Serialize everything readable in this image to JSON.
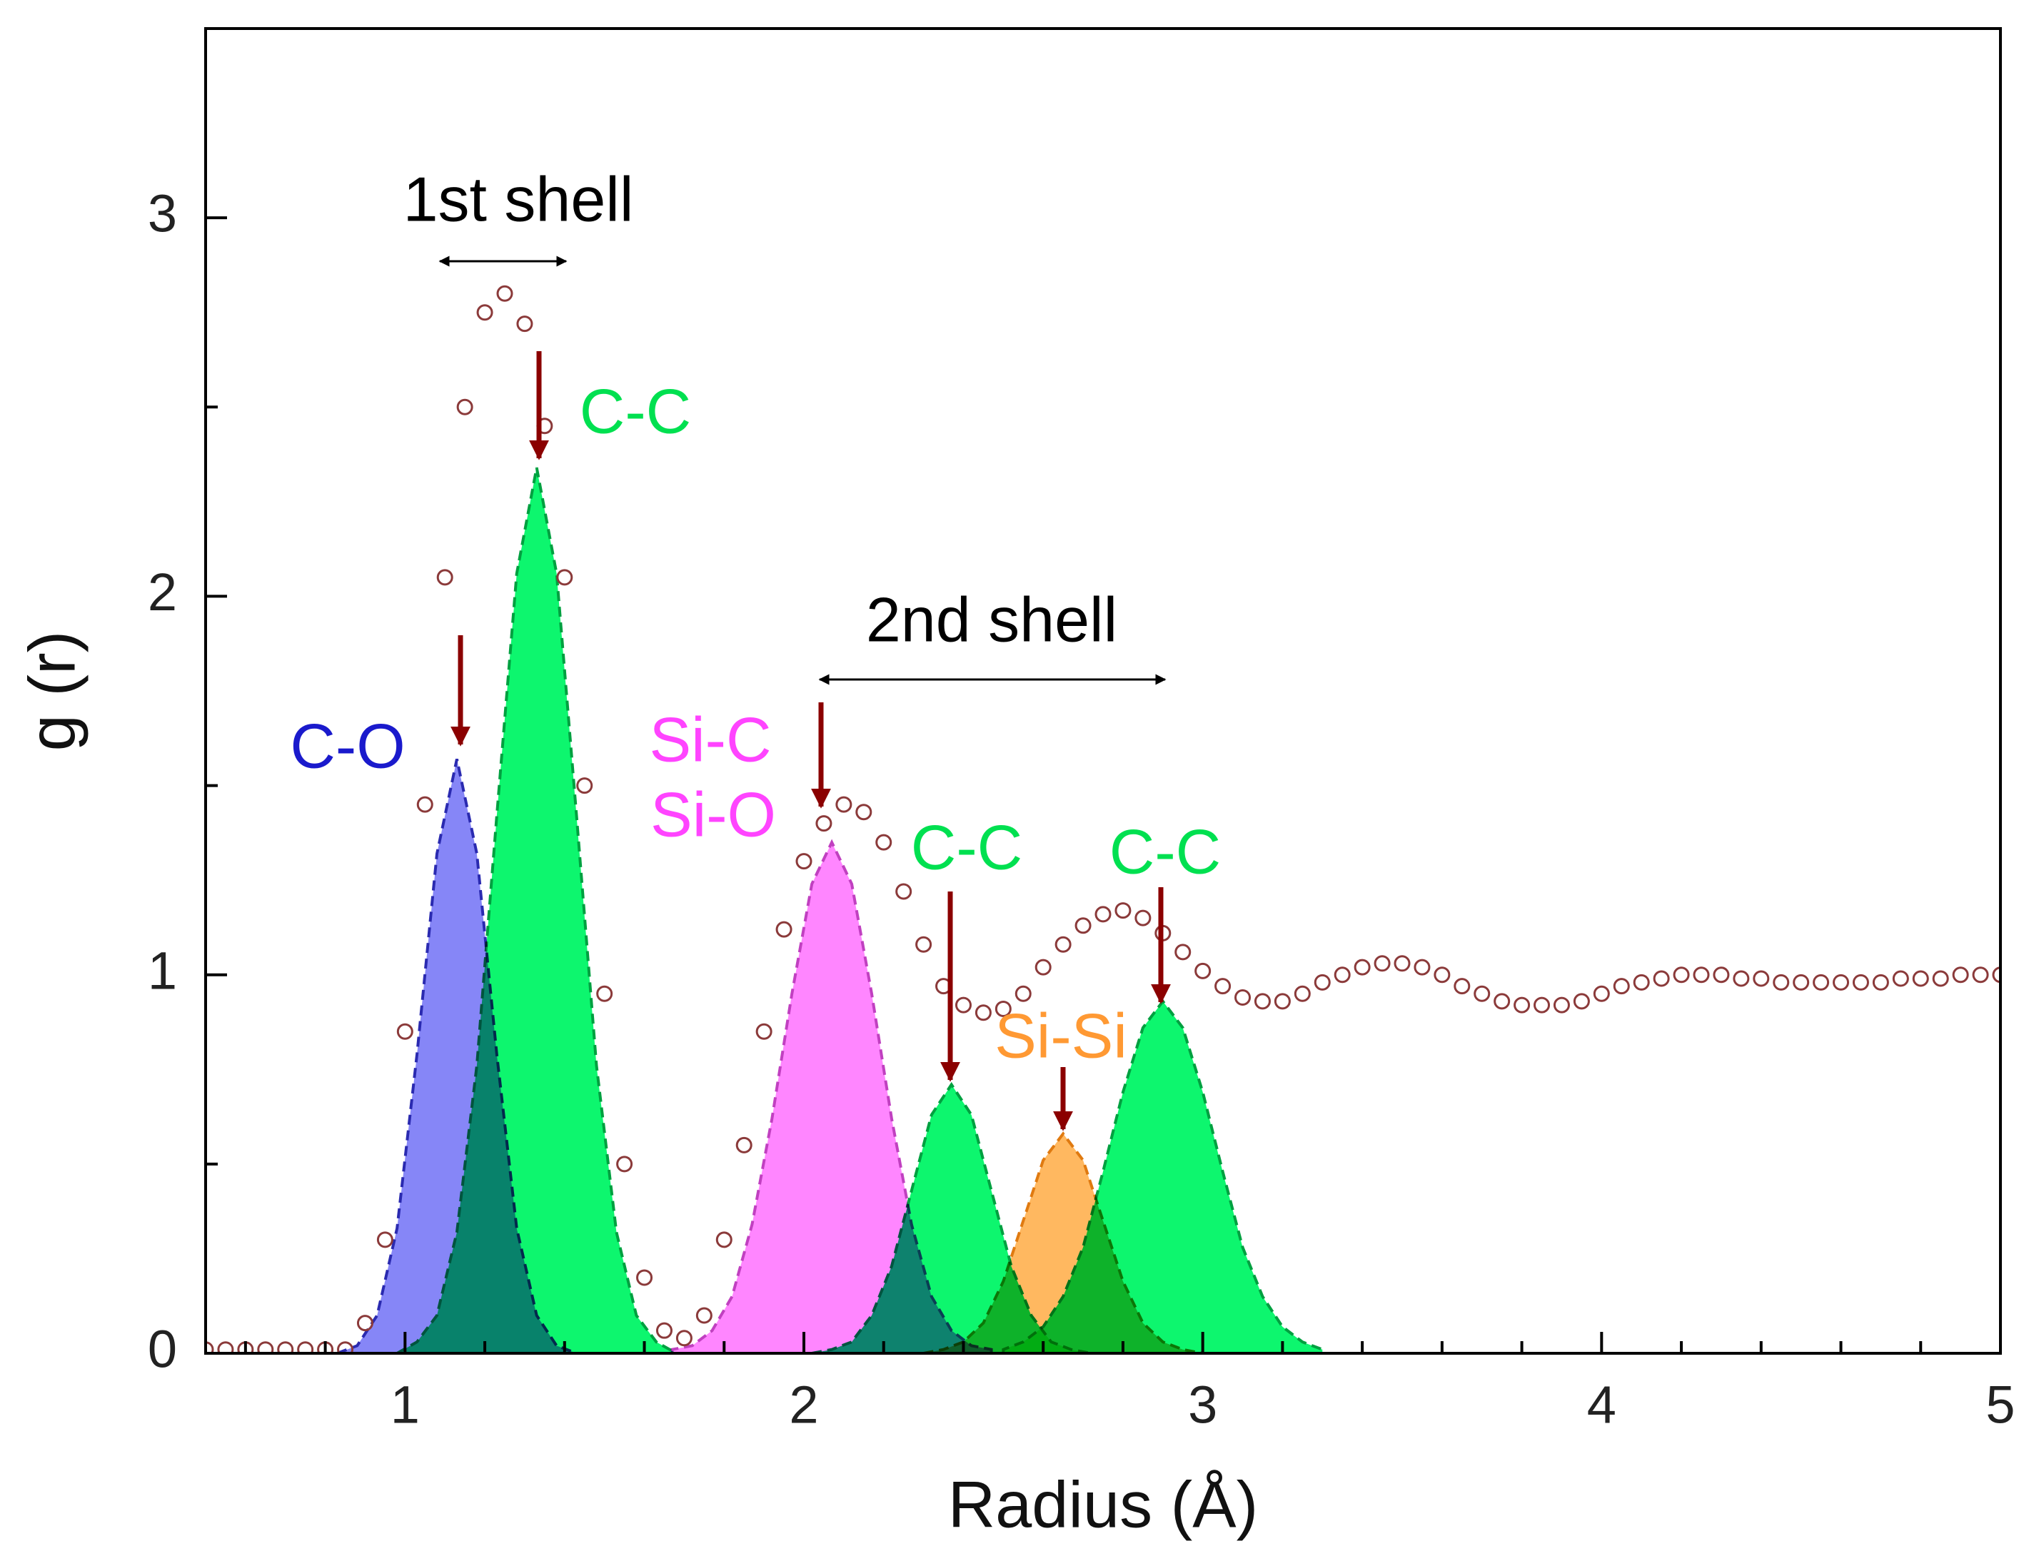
{
  "chart_data": {
    "type": "area",
    "xlabel": "Radius (Å)",
    "ylabel": "g (r)",
    "xlim": [
      0.5,
      5
    ],
    "ylim": [
      0,
      3.5
    ],
    "xticks": [
      1,
      2,
      3,
      4,
      5
    ],
    "yticks": [
      0,
      1,
      2,
      3
    ],
    "xminorticks": [
      0.6,
      0.8,
      1.2,
      1.4,
      1.6,
      1.8,
      2.2,
      2.4,
      2.6,
      2.8,
      3.2,
      3.4,
      3.6,
      3.8,
      4.2,
      4.4,
      4.6,
      4.8
    ],
    "yminorticks": [
      0.5,
      1.5,
      2.5
    ],
    "series": [
      {
        "type": "area",
        "color": "#7f7ff7",
        "edge_color": "#2a2ab0",
        "x": [
          0.83,
          0.88,
          0.93,
          0.98,
          1.03,
          1.08,
          1.13,
          1.18,
          1.23,
          1.28,
          1.33,
          1.38,
          1.43
        ],
        "values": [
          0,
          0.02,
          0.1,
          0.33,
          0.79,
          1.32,
          1.57,
          1.32,
          0.79,
          0.33,
          0.1,
          0.02,
          0
        ]
      },
      {
        "type": "area",
        "color": "#00f566",
        "edge_color": "#00a040",
        "x": [
          0.98,
          1.03,
          1.08,
          1.13,
          1.18,
          1.23,
          1.28,
          1.33,
          1.38,
          1.43,
          1.48,
          1.53,
          1.58,
          1.63,
          1.68
        ],
        "values": [
          0,
          0.03,
          0.1,
          0.32,
          0.76,
          1.42,
          2.06,
          2.34,
          2.06,
          1.42,
          0.76,
          0.32,
          0.1,
          0.03,
          0
        ]
      },
      {
        "type": "area",
        "color": "#ff80ff",
        "edge_color": "#c040c0",
        "x": [
          1.67,
          1.72,
          1.77,
          1.82,
          1.87,
          1.92,
          1.97,
          2.02,
          2.07,
          2.12,
          2.17,
          2.22,
          2.27,
          2.32,
          2.37,
          2.42,
          2.47
        ],
        "values": [
          0.01,
          0.02,
          0.06,
          0.15,
          0.34,
          0.62,
          0.95,
          1.24,
          1.35,
          1.24,
          0.95,
          0.62,
          0.34,
          0.15,
          0.06,
          0.02,
          0.01
        ]
      },
      {
        "type": "area",
        "color": "#00f566",
        "edge_color": "#00a040",
        "x": [
          2.02,
          2.07,
          2.12,
          2.17,
          2.22,
          2.27,
          2.32,
          2.37,
          2.42,
          2.47,
          2.52,
          2.57,
          2.62,
          2.67,
          2.72
        ],
        "values": [
          0,
          0.01,
          0.03,
          0.1,
          0.23,
          0.43,
          0.63,
          0.71,
          0.63,
          0.43,
          0.23,
          0.1,
          0.03,
          0.01,
          0
        ]
      },
      {
        "type": "area",
        "color": "#ffb457",
        "edge_color": "#e07a10",
        "x": [
          2.3,
          2.35,
          2.4,
          2.45,
          2.5,
          2.55,
          2.6,
          2.65,
          2.7,
          2.75,
          2.8,
          2.85,
          2.9,
          2.95,
          3
        ],
        "values": [
          0,
          0.01,
          0.03,
          0.08,
          0.19,
          0.35,
          0.51,
          0.58,
          0.51,
          0.35,
          0.19,
          0.08,
          0.03,
          0.01,
          0
        ]
      },
      {
        "type": "area",
        "color": "#00f566",
        "edge_color": "#00a040",
        "x": [
          2.5,
          2.55,
          2.6,
          2.65,
          2.7,
          2.75,
          2.8,
          2.85,
          2.9,
          2.95,
          3,
          3.05,
          3.1,
          3.15,
          3.2,
          3.25,
          3.3
        ],
        "values": [
          0.01,
          0.03,
          0.07,
          0.15,
          0.28,
          0.48,
          0.69,
          0.86,
          0.93,
          0.86,
          0.69,
          0.48,
          0.28,
          0.15,
          0.07,
          0.03,
          0.01
        ]
      },
      {
        "type": "scatter",
        "color": "#8b3a3a",
        "x": [
          0.5,
          0.55,
          0.6,
          0.65,
          0.7,
          0.75,
          0.8,
          0.85,
          0.9,
          0.95,
          1,
          1.05,
          1.1,
          1.15,
          1.2,
          1.25,
          1.3,
          1.35,
          1.4,
          1.45,
          1.5,
          1.55,
          1.6,
          1.65,
          1.7,
          1.75,
          1.8,
          1.85,
          1.9,
          1.95,
          2,
          2.05,
          2.1,
          2.15,
          2.2,
          2.25,
          2.3,
          2.35,
          2.4,
          2.45,
          2.5,
          2.55,
          2.6,
          2.65,
          2.7,
          2.75,
          2.8,
          2.85,
          2.9,
          2.95,
          3,
          3.05,
          3.1,
          3.15,
          3.2,
          3.25,
          3.3,
          3.35,
          3.4,
          3.45,
          3.5,
          3.55,
          3.6,
          3.65,
          3.7,
          3.75,
          3.8,
          3.85,
          3.9,
          3.95,
          4,
          4.05,
          4.1,
          4.15,
          4.2,
          4.25,
          4.3,
          4.35,
          4.4,
          4.45,
          4.5,
          4.55,
          4.6,
          4.65,
          4.7,
          4.75,
          4.8,
          4.85,
          4.9,
          4.95,
          5
        ],
        "values": [
          0.01,
          0.01,
          0.01,
          0.01,
          0.01,
          0.01,
          0.01,
          0.01,
          0.08,
          0.3,
          0.85,
          1.45,
          2.05,
          2.5,
          2.75,
          2.8,
          2.72,
          2.45,
          2.05,
          1.5,
          0.95,
          0.5,
          0.2,
          0.06,
          0.04,
          0.1,
          0.3,
          0.55,
          0.85,
          1.12,
          1.3,
          1.4,
          1.45,
          1.43,
          1.35,
          1.22,
          1.08,
          0.97,
          0.92,
          0.9,
          0.91,
          0.95,
          1.02,
          1.08,
          1.13,
          1.16,
          1.17,
          1.15,
          1.11,
          1.06,
          1.01,
          0.97,
          0.94,
          0.93,
          0.93,
          0.95,
          0.98,
          1,
          1.02,
          1.03,
          1.03,
          1.02,
          1,
          0.97,
          0.95,
          0.93,
          0.92,
          0.92,
          0.92,
          0.93,
          0.95,
          0.97,
          0.98,
          0.99,
          1,
          1,
          1,
          0.99,
          0.99,
          0.98,
          0.98,
          0.98,
          0.98,
          0.98,
          0.98,
          0.99,
          0.99,
          0.99,
          1,
          1,
          1
        ]
      }
    ],
    "annotations": [
      {
        "text": "1st shell",
        "color": "#000000"
      },
      {
        "text": "C-C",
        "color": "#00e050"
      },
      {
        "text": "C-O",
        "color": "#1a1acc"
      },
      {
        "text": "Si-C",
        "color": "#ff44ff"
      },
      {
        "text": "Si-O",
        "color": "#ff44ff"
      },
      {
        "text": "2nd shell",
        "color": "#000000"
      },
      {
        "text": "C-C",
        "color": "#00e050"
      },
      {
        "text": "C-C",
        "color": "#00e050"
      },
      {
        "text": "Si-Si",
        "color": "#ff9933"
      }
    ]
  }
}
